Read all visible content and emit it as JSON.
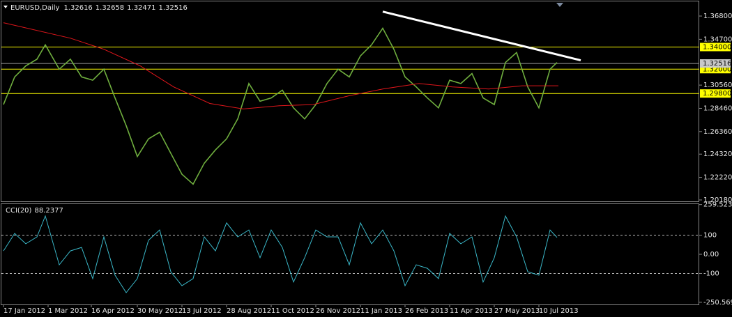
{
  "chart_data": [
    {
      "type": "line",
      "title": "EURUSD,Daily",
      "quote": {
        "values": [
          1.32616,
          1.32658,
          1.32471,
          1.32516
        ],
        "value_labels": [
          "1.32616",
          "1.32658",
          "1.32471",
          "1.32516"
        ]
      },
      "xlim": [
        -2.5,
        499
      ],
      "xticks": [
        {
          "value": 0,
          "label": "17 Jan 2012"
        },
        {
          "value": 32,
          "label": "1 Mar 2012"
        },
        {
          "value": 63,
          "label": "16 Apr 2012"
        },
        {
          "value": 96,
          "label": "30 May 2012"
        },
        {
          "value": 128,
          "label": "13 Jul 2012"
        },
        {
          "value": 160,
          "label": "28 Aug 2012"
        },
        {
          "value": 192,
          "label": "11 Oct 2012"
        },
        {
          "value": 224,
          "label": "26 Nov 2012"
        },
        {
          "value": 256,
          "label": "11 Jan 2013"
        },
        {
          "value": 288,
          "label": "26 Feb 2013"
        },
        {
          "value": 320,
          "label": "11 Apr 2013"
        },
        {
          "value": 352,
          "label": "27 May 2013"
        },
        {
          "value": 384,
          "label": "10 Jul 2013"
        }
      ],
      "ylim": [
        1.1999,
        1.3825
      ],
      "yticks": [
        {
          "value": 1.368,
          "label": "1.36800"
        },
        {
          "value": 1.347,
          "label": "1.34700"
        },
        {
          "value": 1.3056,
          "label": "1.30560"
        },
        {
          "value": 1.2846,
          "label": "1.28460"
        },
        {
          "value": 1.2636,
          "label": "1.26360"
        },
        {
          "value": 1.2432,
          "label": "1.24320"
        },
        {
          "value": 1.2222,
          "label": "1.22220"
        },
        {
          "value": 1.2018,
          "label": "1.20180"
        }
      ],
      "series": [
        {
          "color": "#6fae3e",
          "x": [
            0,
            8,
            16,
            24,
            30,
            40,
            48,
            56,
            64,
            72,
            80,
            88,
            96,
            104,
            112,
            120,
            128,
            136,
            144,
            152,
            160,
            168,
            176,
            184,
            192,
            200,
            208,
            216,
            224,
            232,
            240,
            248,
            256,
            264,
            272,
            280,
            288,
            296,
            304,
            312,
            320,
            328,
            336,
            344,
            352,
            360,
            368,
            376,
            384,
            392,
            397
          ],
          "values": [
            1.288,
            1.313,
            1.323,
            1.329,
            1.342,
            1.32,
            1.329,
            1.313,
            1.31,
            1.32,
            1.294,
            1.269,
            1.241,
            1.257,
            1.263,
            1.244,
            1.225,
            1.216,
            1.235,
            1.247,
            1.257,
            1.275,
            1.307,
            1.291,
            1.294,
            1.301,
            1.285,
            1.275,
            1.288,
            1.307,
            1.32,
            1.313,
            1.332,
            1.342,
            1.357,
            1.338,
            1.313,
            1.304,
            1.294,
            1.285,
            1.31,
            1.307,
            1.316,
            1.294,
            1.288,
            1.326,
            1.335,
            1.304,
            1.285,
            1.32,
            1.326
          ]
        },
        {
          "color": "#e0161b",
          "x": [
            0,
            48,
            72,
            98,
            122,
            148,
            172,
            198,
            222,
            248,
            272,
            298,
            322,
            348,
            372,
            398
          ],
          "values": [
            1.362,
            1.348,
            1.338,
            1.323,
            1.304,
            1.289,
            1.284,
            1.287,
            1.288,
            1.296,
            1.302,
            1.307,
            1.304,
            1.302,
            1.305,
            1.305
          ]
        }
      ],
      "levels": {
        "color": "#ffff00",
        "values": [
          1.34,
          1.32,
          1.298
        ],
        "value_labels": [
          "1.34000",
          "1.32000",
          "1.29800"
        ]
      },
      "trendline": {
        "color": "#ffffff",
        "x": [
          272,
          414
        ],
        "values": [
          1.372,
          1.328
        ]
      }
    },
    {
      "type": "line",
      "title": "CCI(20)",
      "last": 88.2377,
      "ylim": [
        -262,
        262
      ],
      "yticks": [
        259.5237,
        100,
        {
          "value": 0,
          "label": "0.00"
        },
        -100,
        -250.569
      ],
      "levels": [
        100,
        -100
      ],
      "series": [
        {
          "color": "#3ab7c8",
          "x": [
            0,
            8,
            16,
            24,
            30,
            40,
            48,
            56,
            64,
            72,
            80,
            88,
            96,
            104,
            112,
            120,
            128,
            136,
            144,
            152,
            160,
            168,
            176,
            184,
            192,
            200,
            208,
            216,
            224,
            232,
            240,
            248,
            256,
            264,
            272,
            280,
            288,
            296,
            304,
            312,
            320,
            328,
            336,
            344,
            352,
            360,
            368,
            376,
            384,
            392,
            397
          ],
          "values": [
            18,
            109,
            55,
            91,
            200,
            -55,
            18,
            36,
            -127,
            91,
            -109,
            -200,
            -127,
            73,
            127,
            -91,
            -164,
            -127,
            91,
            18,
            164,
            91,
            127,
            -18,
            127,
            36,
            -145,
            -18,
            127,
            91,
            91,
            -55,
            164,
            55,
            127,
            18,
            -164,
            -55,
            -73,
            -127,
            109,
            55,
            91,
            -145,
            -18,
            200,
            91,
            -91,
            -109,
            127,
            88.2377
          ]
        }
      ]
    }
  ]
}
